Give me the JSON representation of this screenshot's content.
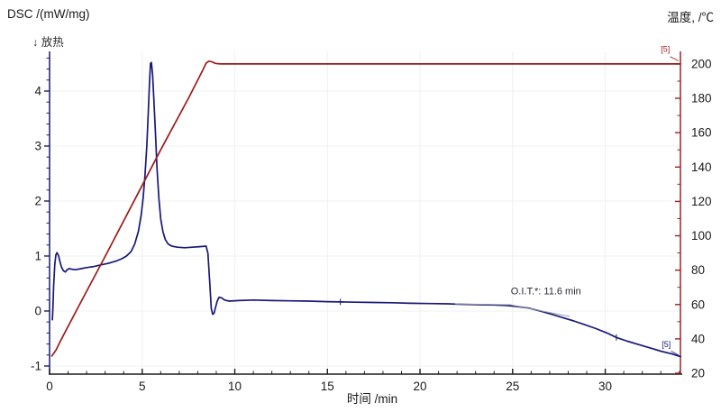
{
  "titles": {
    "left_axis_title": "DSC /(mW/mg)",
    "exo_label": "↓ 放热",
    "right_axis_title": "温度, /℃",
    "x_axis_title": "时间 /min"
  },
  "colors": {
    "dsc_line": "#18187a",
    "temperature_line": "#9e1b1b",
    "x_axis": "#1a1a1a",
    "left_axis": "#1c1c6e",
    "right_axis": "#a02020",
    "tick_label": "#1a1a1a",
    "grid": "#f0f0f0",
    "annotation_line": "#9aa0a8",
    "annotation_text": "#2a2a33"
  },
  "chart_data": {
    "type": "line",
    "title": "",
    "xlabel": "时间 /min",
    "ylabel_left": "DSC /(mW/mg)",
    "ylabel_right": "温度 /℃",
    "legend": "none",
    "grid": "faint",
    "xlim": [
      0,
      34.06
    ],
    "left_ylim": [
      -1.148,
      4.721
    ],
    "right_ylim": [
      19.48,
      207.3
    ],
    "x_ticks_major": [
      0,
      5,
      10,
      15,
      20,
      25,
      30
    ],
    "x_minor_step": 1,
    "left_ticks_major": [
      -1,
      0,
      1,
      2,
      3,
      4
    ],
    "left_minor_step": 0.2,
    "right_ticks_major": [
      20,
      40,
      60,
      80,
      100,
      120,
      140,
      160,
      180,
      200
    ],
    "right_minor_step": 10,
    "series": [
      {
        "name": "DSC",
        "axis": "left",
        "unit": "mW/mg",
        "points": [
          [
            0.15,
            -0.16
          ],
          [
            0.18,
            0.05
          ],
          [
            0.22,
            0.45
          ],
          [
            0.28,
            0.85
          ],
          [
            0.34,
            1.02
          ],
          [
            0.4,
            1.06
          ],
          [
            0.48,
            1.01
          ],
          [
            0.56,
            0.9
          ],
          [
            0.64,
            0.8
          ],
          [
            0.75,
            0.73
          ],
          [
            0.85,
            0.71
          ],
          [
            0.95,
            0.75
          ],
          [
            1.05,
            0.77
          ],
          [
            1.2,
            0.76
          ],
          [
            1.4,
            0.75
          ],
          [
            1.7,
            0.77
          ],
          [
            2.0,
            0.79
          ],
          [
            2.4,
            0.81
          ],
          [
            2.8,
            0.84
          ],
          [
            3.2,
            0.87
          ],
          [
            3.6,
            0.91
          ],
          [
            3.9,
            0.95
          ],
          [
            4.15,
            1.0
          ],
          [
            4.4,
            1.08
          ],
          [
            4.6,
            1.22
          ],
          [
            4.8,
            1.45
          ],
          [
            4.95,
            1.75
          ],
          [
            5.05,
            2.05
          ],
          [
            5.15,
            2.45
          ],
          [
            5.25,
            3.0
          ],
          [
            5.33,
            3.6
          ],
          [
            5.4,
            4.2
          ],
          [
            5.45,
            4.5
          ],
          [
            5.5,
            4.52
          ],
          [
            5.56,
            4.3
          ],
          [
            5.63,
            3.85
          ],
          [
            5.72,
            3.2
          ],
          [
            5.8,
            2.6
          ],
          [
            5.9,
            2.05
          ],
          [
            6.0,
            1.68
          ],
          [
            6.12,
            1.44
          ],
          [
            6.25,
            1.3
          ],
          [
            6.4,
            1.22
          ],
          [
            6.6,
            1.18
          ],
          [
            6.9,
            1.16
          ],
          [
            7.3,
            1.15
          ],
          [
            7.7,
            1.16
          ],
          [
            8.1,
            1.17
          ],
          [
            8.45,
            1.18
          ],
          [
            8.55,
            1.05
          ],
          [
            8.65,
            0.5
          ],
          [
            8.73,
            0.05
          ],
          [
            8.8,
            -0.06
          ],
          [
            8.88,
            -0.04
          ],
          [
            8.95,
            0.05
          ],
          [
            9.05,
            0.18
          ],
          [
            9.15,
            0.25
          ],
          [
            9.28,
            0.24
          ],
          [
            9.45,
            0.2
          ],
          [
            9.7,
            0.18
          ],
          [
            10.2,
            0.19
          ],
          [
            11,
            0.2
          ],
          [
            12,
            0.19
          ],
          [
            13,
            0.185
          ],
          [
            14,
            0.18
          ],
          [
            15,
            0.17
          ],
          [
            15.7,
            0.165
          ],
          [
            16.5,
            0.16
          ],
          [
            17.5,
            0.155
          ],
          [
            18.5,
            0.15
          ],
          [
            19.5,
            0.14
          ],
          [
            20.5,
            0.135
          ],
          [
            21.5,
            0.13
          ],
          [
            22.5,
            0.12
          ],
          [
            23.3,
            0.115
          ],
          [
            24,
            0.11
          ],
          [
            24.7,
            0.1
          ],
          [
            25.3,
            0.08
          ],
          [
            25.9,
            0.05
          ],
          [
            26.5,
            0.0
          ],
          [
            27.1,
            -0.06
          ],
          [
            27.7,
            -0.12
          ],
          [
            28.3,
            -0.18
          ],
          [
            28.9,
            -0.25
          ],
          [
            29.5,
            -0.32
          ],
          [
            30.1,
            -0.4
          ],
          [
            30.6,
            -0.48
          ],
          [
            31.2,
            -0.55
          ],
          [
            31.8,
            -0.61
          ],
          [
            32.4,
            -0.67
          ],
          [
            33.0,
            -0.73
          ],
          [
            33.6,
            -0.78
          ],
          [
            34.06,
            -0.83
          ]
        ]
      },
      {
        "name": "温度",
        "axis": "right",
        "unit": "℃",
        "points": [
          [
            0.12,
            30
          ],
          [
            0.35,
            33.5
          ],
          [
            0.6,
            39
          ],
          [
            1.5,
            57.5
          ],
          [
            3.0,
            88
          ],
          [
            4.5,
            119
          ],
          [
            6.0,
            150
          ],
          [
            7.5,
            180
          ],
          [
            8.3,
            197
          ],
          [
            8.45,
            200.5
          ],
          [
            8.6,
            201.6
          ],
          [
            8.78,
            201.2
          ],
          [
            8.95,
            200.3
          ],
          [
            9.2,
            200
          ],
          [
            34.06,
            200
          ]
        ]
      }
    ],
    "curve_markers": [
      {
        "series": "DSC",
        "t": 15.7,
        "value": 0.165
      },
      {
        "series": "DSC",
        "t": 30.6,
        "value": -0.48
      }
    ],
    "oit_annotation": {
      "text": "O.I.T.*: 11.6 min",
      "text_anchor": {
        "t": 24.9,
        "value": 0.3
      },
      "baseline_line": [
        [
          21.9,
          0.13
        ],
        [
          24.87,
          0.115
        ]
      ],
      "tangent_line": [
        [
          24.87,
          0.115
        ],
        [
          28.1,
          -0.1
        ]
      ]
    },
    "segment_labels": [
      {
        "text": "[5]",
        "series": "温度",
        "axis": "right",
        "t": 33.0,
        "value": 207.0,
        "leader": [
          [
            33.5,
            204.3
          ],
          [
            33.95,
            201.8
          ]
        ]
      },
      {
        "text": "[5]",
        "series": "DSC",
        "axis": "left",
        "t": 33.05,
        "value": -0.66,
        "leader": [
          [
            33.55,
            -0.73
          ],
          [
            33.95,
            -0.8
          ]
        ]
      }
    ]
  }
}
